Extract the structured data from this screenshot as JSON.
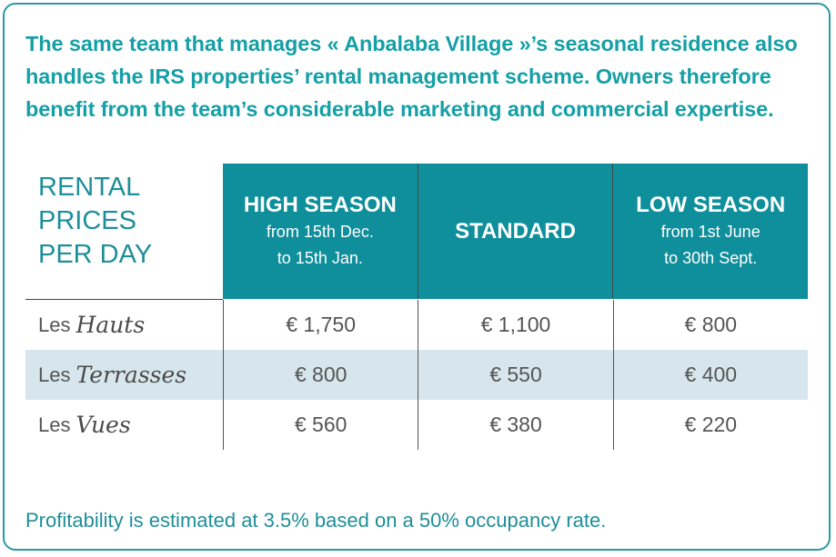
{
  "intro": {
    "line1": "The same team that manages « Anbalaba Village »’s seasonal residence also",
    "line2": "handles the IRS properties’ rental management scheme. Owners therefore",
    "line3": "benefit from the team’s considerable marketing and commercial expertise."
  },
  "table": {
    "corner_label": [
      "RENTAL",
      "PRICES",
      "PER DAY"
    ],
    "columns": [
      {
        "title": "HIGH SEASON",
        "sub1": "from 15th Dec.",
        "sub2": "to 15th Jan."
      },
      {
        "title": "STANDARD",
        "sub1": "",
        "sub2": ""
      },
      {
        "title": "LOW SEASON",
        "sub1": "from 1st June",
        "sub2": "to 30th Sept."
      }
    ],
    "rows": [
      {
        "prefix": "Les",
        "name": "Hauts",
        "values": [
          "€ 1,750",
          "€ 1,100",
          "€ 800"
        ]
      },
      {
        "prefix": "Les",
        "name": "Terrasses",
        "values": [
          "€ 800",
          "€ 550",
          "€ 400"
        ]
      },
      {
        "prefix": "Les",
        "name": "Vues",
        "values": [
          "€ 560",
          "€ 380",
          "€ 220"
        ]
      }
    ]
  },
  "footnote": "Profitability is estimated at 3.5% based on a 50% occupancy rate.",
  "colors": {
    "accent": "#14a0a6",
    "header_bg": "#0e8f9b",
    "alt_row": "#d6e6ec"
  }
}
